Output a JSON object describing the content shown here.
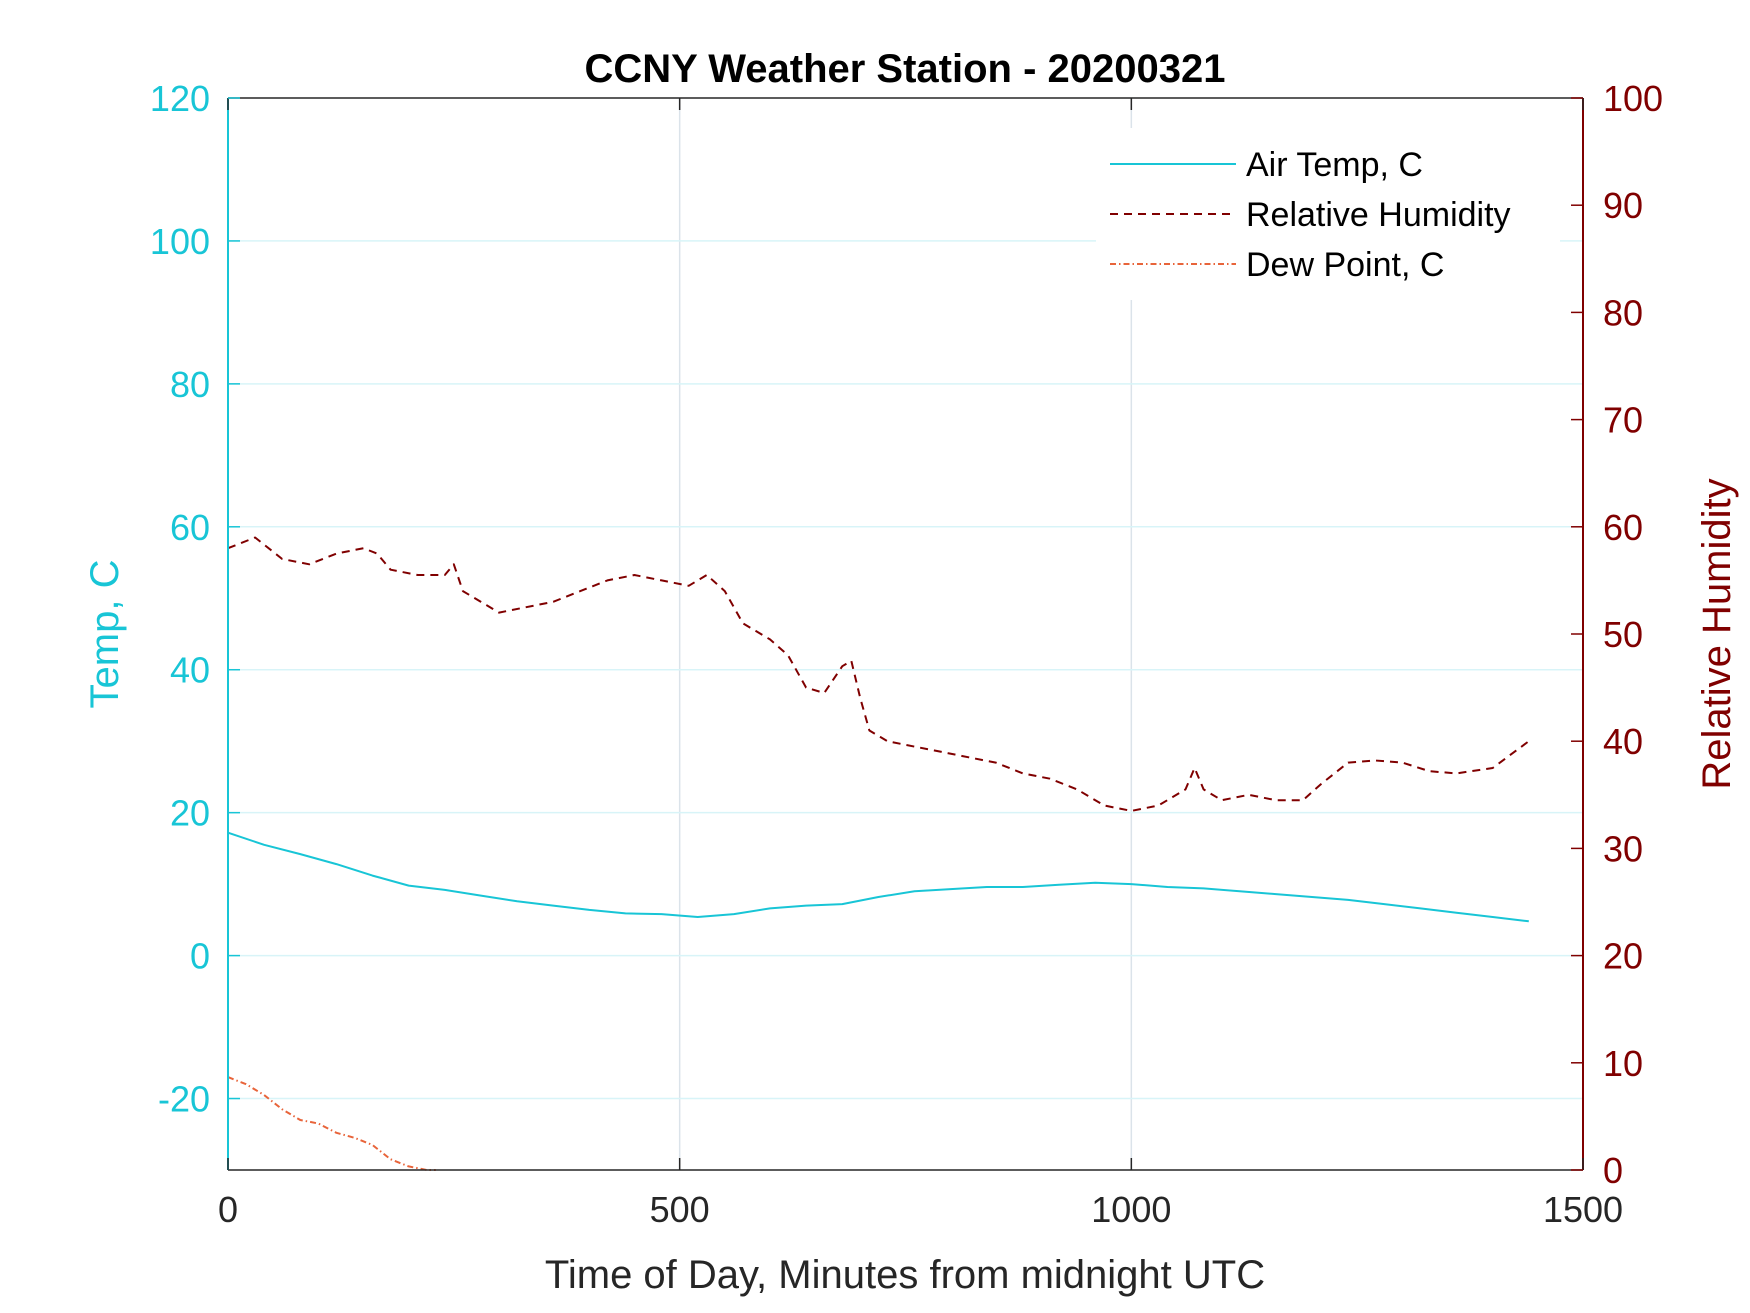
{
  "chart_data": {
    "type": "line",
    "title": "CCNY Weather Station - 20200321",
    "xlabel": "Time of Day, Minutes from midnight UTC",
    "ylabel_left": "Temp, C",
    "ylabel_right": "Relative Humidity",
    "xlim": [
      0,
      1500
    ],
    "ylim_left": [
      -30,
      120
    ],
    "ylim_right": [
      0,
      100
    ],
    "xticks": [
      0,
      500,
      1000,
      1500
    ],
    "yticks_left": [
      -20,
      0,
      20,
      40,
      60,
      80,
      100,
      120
    ],
    "yticks_right": [
      0,
      10,
      20,
      30,
      40,
      50,
      60,
      70,
      80,
      90,
      100
    ],
    "grid": true,
    "legend_position": "top-right",
    "colors": {
      "left_axis": "#18c5d6",
      "right_axis": "#800000",
      "dew_point": "#e8643a",
      "grid": "#dbe3ea",
      "left_grid": "#d8f4f8"
    },
    "series": [
      {
        "name": "Air Temp, C",
        "axis": "left",
        "style": "solid",
        "x": [
          0,
          40,
          80,
          120,
          160,
          200,
          240,
          280,
          320,
          360,
          400,
          440,
          480,
          520,
          560,
          600,
          640,
          680,
          720,
          760,
          800,
          840,
          880,
          920,
          960,
          1000,
          1040,
          1080,
          1120,
          1160,
          1200,
          1240,
          1280,
          1320,
          1360,
          1400,
          1440
        ],
        "values": [
          17.2,
          15.5,
          14.2,
          12.8,
          11.2,
          9.8,
          9.2,
          8.4,
          7.6,
          7.0,
          6.4,
          5.9,
          5.8,
          5.4,
          5.8,
          6.6,
          7.0,
          7.2,
          8.2,
          9.0,
          9.3,
          9.6,
          9.6,
          9.9,
          10.2,
          10.0,
          9.6,
          9.4,
          9.0,
          8.6,
          8.2,
          7.8,
          7.2,
          6.6,
          6.0,
          5.4,
          4.8
        ]
      },
      {
        "name": "Relative Humidity",
        "axis": "right",
        "style": "dashed",
        "x": [
          0,
          30,
          60,
          90,
          120,
          150,
          165,
          180,
          210,
          240,
          250,
          260,
          300,
          330,
          360,
          390,
          420,
          450,
          480,
          510,
          530,
          550,
          570,
          600,
          620,
          640,
          660,
          680,
          690,
          700,
          710,
          730,
          760,
          790,
          820,
          850,
          880,
          910,
          940,
          970,
          1000,
          1030,
          1060,
          1070,
          1080,
          1100,
          1130,
          1160,
          1190,
          1210,
          1240,
          1270,
          1300,
          1330,
          1360,
          1400,
          1440
        ],
        "values": [
          58,
          59,
          57,
          56.5,
          57.5,
          58,
          57.5,
          56,
          55.5,
          55.5,
          56.5,
          54,
          52,
          52.5,
          53,
          54,
          55,
          55.5,
          55,
          54.5,
          55.5,
          54,
          51,
          49.5,
          48,
          45,
          44.5,
          47,
          47.5,
          44,
          41,
          40,
          39.5,
          39,
          38.5,
          38,
          37,
          36.5,
          35.5,
          34,
          33.5,
          34,
          35.5,
          37.5,
          35.5,
          34.5,
          35,
          34.5,
          34.5,
          36,
          38,
          38.2,
          38,
          37.2,
          37,
          37.5,
          40
        ]
      },
      {
        "name": "Dew Point, C",
        "axis": "left",
        "style": "dash-dot",
        "x": [
          0,
          20,
          40,
          60,
          80,
          100,
          120,
          140,
          160,
          180,
          200,
          220,
          230
        ],
        "values": [
          -17,
          -18,
          -19.5,
          -21.5,
          -23,
          -23.5,
          -24.8,
          -25.5,
          -26.5,
          -28.5,
          -29.5,
          -30,
          -30
        ]
      }
    ]
  }
}
